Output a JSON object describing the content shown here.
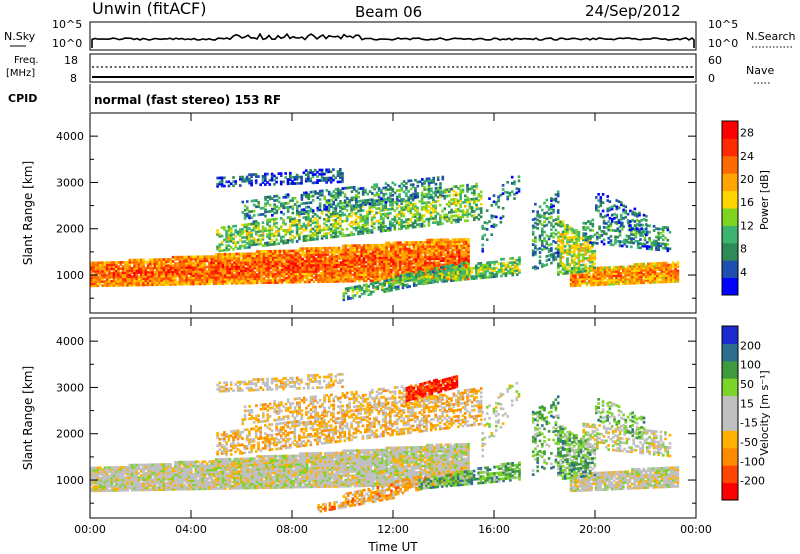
{
  "header": {
    "station": "Unwin (fitACF)",
    "beam": "Beam 06",
    "date": "24/Sep/2012"
  },
  "noise_panel": {
    "left_label": "N.Sky",
    "right_label": "N.Search",
    "left_ticks": [
      "10^5",
      "10^0"
    ],
    "right_ticks": [
      "10^5",
      "10^0"
    ]
  },
  "freq_panel": {
    "left_label_1": "Freq.",
    "left_label_2": "[MHz]",
    "left_ticks": [
      "18",
      "8"
    ],
    "right_label": "Nave",
    "right_ticks": [
      "60",
      "0"
    ]
  },
  "cpid": {
    "label": "CPID",
    "text": "normal (fast stereo) 153 RF"
  },
  "colors": {
    "power": [
      "#0000ff",
      "#1f4fb0",
      "#2e8b57",
      "#3cb371",
      "#7fd321",
      "#ffd700",
      "#ffa500",
      "#ff6a00",
      "#ff2a00",
      "#ff0000"
    ],
    "velocity": [
      "#ff0000",
      "#ff4500",
      "#ff8c00",
      "#ffb000",
      "#c0c0c0",
      "#c0c0c0",
      "#7cd32a",
      "#3e9a3e",
      "#2d6e8e",
      "#1a2bd0"
    ]
  },
  "chart_data": [
    {
      "type": "heatmap",
      "title": "",
      "ylabel": "Slant Range [km]",
      "xlabel": "",
      "x_range": [
        "00:00",
        "24:00"
      ],
      "ylim": [
        180,
        4500
      ],
      "y_ticks": [
        "1000",
        "2000",
        "3000",
        "4000"
      ],
      "x_ticks": [
        "00:00",
        "04:00",
        "08:00",
        "12:00",
        "16:00",
        "20:00",
        "00:00"
      ],
      "colorbar": {
        "label": "Power [dB]",
        "ticks": [
          "4",
          "8",
          "12",
          "16",
          "20",
          "24",
          "28"
        ],
        "range": [
          0,
          30
        ]
      }
    },
    {
      "type": "heatmap",
      "title": "",
      "ylabel": "Slant Range [km]",
      "xlabel": "Time UT",
      "x_range": [
        "00:00",
        "24:00"
      ],
      "ylim": [
        180,
        4500
      ],
      "y_ticks": [
        "1000",
        "2000",
        "3000",
        "4000"
      ],
      "x_ticks": [
        "00:00",
        "04:00",
        "08:00",
        "12:00",
        "16:00",
        "20:00",
        "00:00"
      ],
      "colorbar": {
        "label": "Velocity [m s⁻¹]",
        "ticks": [
          "200",
          "100",
          "50",
          "15",
          "-15",
          "-50",
          "-100",
          "-200"
        ]
      }
    }
  ]
}
